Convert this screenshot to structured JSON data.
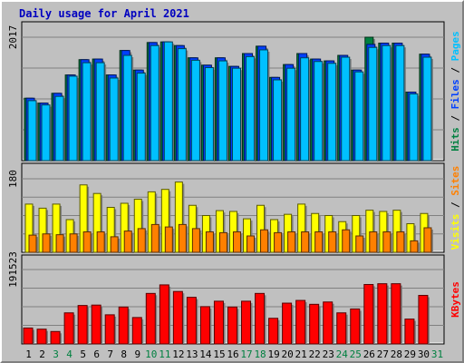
{
  "chart_data": {
    "type": "bar",
    "title": "Daily usage for April 2021",
    "categories": [
      "1",
      "2",
      "3",
      "4",
      "5",
      "6",
      "7",
      "8",
      "9",
      "10",
      "11",
      "12",
      "13",
      "14",
      "15",
      "16",
      "17",
      "18",
      "19",
      "20",
      "21",
      "22",
      "23",
      "24",
      "25",
      "26",
      "27",
      "28",
      "29",
      "30",
      "31"
    ],
    "weekend_days": [
      "3",
      "4",
      "10",
      "11",
      "17",
      "18",
      "24",
      "25",
      "31"
    ],
    "panels": [
      {
        "key": "top",
        "ymax_label": "2017",
        "ymax": 2017,
        "grid": true,
        "legend": [
          {
            "text": "Hits",
            "color": "#008040"
          },
          {
            "text": " / ",
            "color": "#000000"
          },
          {
            "text": "Files",
            "color": "#0040ff"
          },
          {
            "text": " / ",
            "color": "#000000"
          },
          {
            "text": "Pages",
            "color": "#00c0ff"
          }
        ],
        "series": [
          {
            "name": "Hits",
            "color": "#008040",
            "values": [
              1020,
              940,
              1100,
              1400,
              1650,
              1660,
              1400,
              1800,
              1480,
              1930,
              1940,
              1880,
              1680,
              1560,
              1680,
              1540,
              1750,
              1870,
              1360,
              1570,
              1750,
              1660,
              1630,
              1720,
              1480,
              2017,
              1920,
              1920,
              1120,
              1740,
              null
            ]
          },
          {
            "name": "Files",
            "color": "#0040ff",
            "values": [
              1020,
              940,
              1100,
              1400,
              1650,
              1660,
              1400,
              1800,
              1480,
              1930,
              1940,
              1880,
              1680,
              1560,
              1680,
              1540,
              1750,
              1870,
              1360,
              1570,
              1750,
              1660,
              1630,
              1720,
              1480,
              1900,
              1920,
              1920,
              1120,
              1740,
              null
            ]
          },
          {
            "name": "Pages",
            "color": "#00c0ff",
            "values": [
              980,
              910,
              1050,
              1380,
              1600,
              1600,
              1350,
              1720,
              1430,
              1880,
              1940,
              1830,
              1640,
              1520,
              1630,
              1510,
              1700,
              1810,
              1320,
              1510,
              1680,
              1620,
              1590,
              1690,
              1450,
              1850,
              1880,
              1880,
              1090,
              1690,
              null
            ]
          }
        ]
      },
      {
        "key": "mid",
        "ymax_label": "180",
        "ymax": 180,
        "grid": true,
        "legend": [
          {
            "text": "Visits",
            "color": "#ffff00"
          },
          {
            "text": " / ",
            "color": "#000000"
          },
          {
            "text": "Sites",
            "color": "#ff8000"
          }
        ],
        "series": [
          {
            "name": "Visits",
            "color": "#ffff00",
            "values": [
              118,
              108,
              118,
              80,
              165,
              144,
              110,
              120,
              130,
              148,
              154,
              172,
              115,
              90,
              102,
              100,
              82,
              115,
              80,
              93,
              118,
              95,
              90,
              75,
              90,
              103,
              100,
              103,
              70,
              95,
              null
            ]
          },
          {
            "name": "Sites",
            "color": "#ff8000",
            "values": [
              42,
              45,
              43,
              45,
              50,
              50,
              38,
              52,
              58,
              68,
              62,
              68,
              58,
              50,
              48,
              50,
              40,
              55,
              48,
              50,
              50,
              50,
              50,
              55,
              40,
              50,
              50,
              50,
              28,
              60,
              null
            ]
          }
        ]
      },
      {
        "key": "bot",
        "ymax_label": "191523",
        "ymax": 191523,
        "grid": true,
        "legend": [
          {
            "text": "KBytes",
            "color": "#ff0000"
          }
        ],
        "series": [
          {
            "name": "KBytes",
            "color": "#ff0000",
            "values": [
              41000,
              38000,
              32000,
              80000,
              99000,
              100000,
              75000,
              95000,
              68000,
              130000,
              152000,
              135000,
              120000,
              96000,
              110000,
              95000,
              110000,
              130000,
              66000,
              105000,
              112000,
              102000,
              108000,
              80000,
              90000,
              153000,
              155000,
              155000,
              64000,
              125000,
              null
            ]
          }
        ]
      }
    ]
  }
}
